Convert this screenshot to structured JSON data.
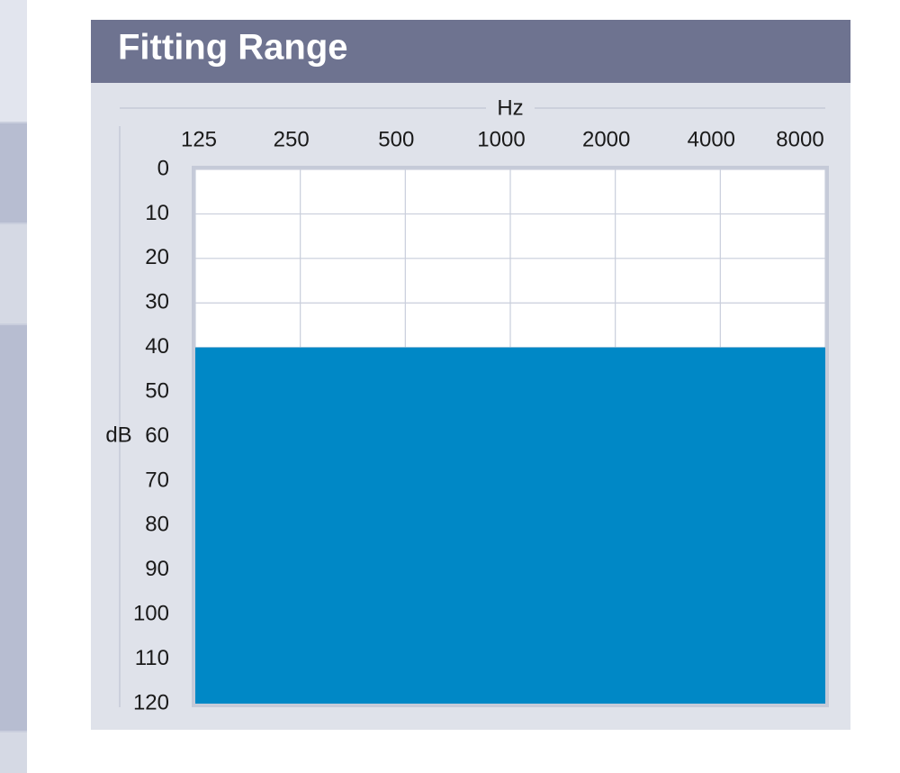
{
  "chart_data": {
    "type": "area",
    "title": "Fitting Range",
    "x_label": "Hz",
    "y_label": "dB",
    "categories": [
      "125",
      "250",
      "500",
      "1000",
      "2000",
      "4000",
      "8000"
    ],
    "series": [
      {
        "color": "#0088c6",
        "values": [
          40,
          40,
          40,
          40,
          40,
          40,
          40
        ]
      }
    ],
    "ylim": [
      0,
      120
    ],
    "y_inverted": true,
    "yticks": [
      0,
      10,
      20,
      30,
      40,
      50,
      60,
      70,
      80,
      90,
      100,
      110,
      120
    ],
    "grid": true
  }
}
